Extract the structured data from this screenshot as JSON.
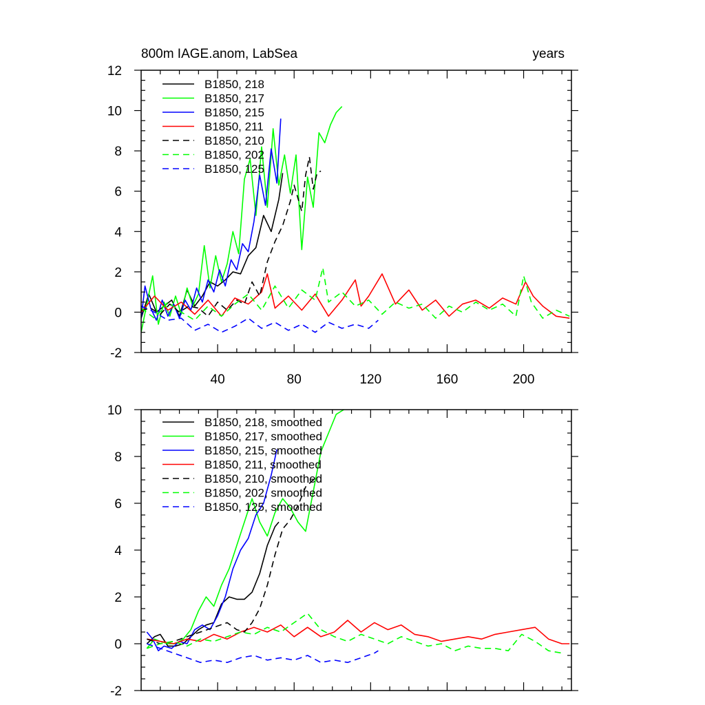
{
  "chart_data": [
    {
      "type": "line",
      "title": "800m IAGE.anom, LabSea",
      "title_right": "years",
      "xlabel": "",
      "ylabel": "",
      "xlim": [
        0,
        225
      ],
      "ylim": [
        -2,
        12
      ],
      "x_ticks": [
        40,
        80,
        120,
        160,
        200
      ],
      "x_tick_labels": [
        "40",
        "80",
        "120",
        "160",
        "200"
      ],
      "y_ticks": [
        -2,
        0,
        2,
        4,
        6,
        8,
        10,
        12
      ],
      "y_tick_labels": [
        "-2",
        "0",
        "2",
        "4",
        "6",
        "8",
        "10",
        "12"
      ],
      "legend_position": "top-left",
      "series": [
        {
          "name": "B1850, 218",
          "color": "#000000",
          "dash": "solid",
          "x": [
            0,
            4,
            8,
            12,
            16,
            20,
            24,
            28,
            32,
            36,
            40,
            44,
            48,
            52,
            56,
            60,
            64,
            68,
            72,
            74
          ],
          "values": [
            -0.3,
            0.9,
            0.0,
            0.3,
            0.6,
            -0.2,
            1.1,
            0.3,
            0.8,
            1.5,
            1.3,
            1.6,
            2.0,
            1.9,
            2.8,
            3.2,
            4.8,
            4.0,
            5.6,
            6.9
          ]
        },
        {
          "name": "B1850, 217",
          "color": "#00ff00",
          "dash": "solid",
          "x": [
            0,
            3,
            6,
            9,
            12,
            15,
            18,
            21,
            24,
            27,
            30,
            33,
            36,
            39,
            42,
            45,
            48,
            51,
            54,
            57,
            60,
            63,
            66,
            69,
            72,
            75,
            78,
            81,
            84,
            87,
            90,
            93,
            96,
            99,
            102,
            105
          ],
          "values": [
            -1.0,
            0.4,
            1.8,
            -0.6,
            0.5,
            -0.2,
            0.8,
            -0.1,
            1.2,
            0.3,
            0.9,
            3.3,
            1.2,
            2.8,
            1.5,
            2.4,
            4.0,
            2.9,
            6.6,
            7.6,
            4.8,
            8.2,
            5.2,
            9.1,
            6.3,
            7.8,
            5.9,
            7.8,
            3.1,
            6.7,
            5.2,
            8.9,
            8.4,
            9.3,
            9.9,
            10.2
          ]
        },
        {
          "name": "B1850, 215",
          "color": "#0000ff",
          "dash": "solid",
          "x": [
            0,
            2,
            5,
            8,
            11,
            14,
            17,
            20,
            23,
            26,
            29,
            32,
            35,
            38,
            41,
            44,
            47,
            50,
            53,
            56,
            59,
            62,
            65,
            68,
            71,
            73
          ],
          "values": [
            -0.3,
            1.3,
            0.2,
            -0.4,
            0.6,
            -0.2,
            0.4,
            -0.3,
            0.6,
            0.1,
            1.2,
            0.5,
            1.6,
            1.0,
            2.1,
            1.3,
            2.6,
            2.1,
            3.4,
            3.0,
            4.5,
            6.8,
            5.3,
            8.1,
            6.4,
            9.6
          ]
        },
        {
          "name": "B1850, 211",
          "color": "#ff0000",
          "dash": "solid",
          "x": [
            0,
            7,
            14,
            21,
            28,
            35,
            42,
            49,
            56,
            63,
            66,
            70,
            77,
            84,
            91,
            98,
            105,
            112,
            115,
            119,
            126,
            133,
            140,
            147,
            154,
            161,
            168,
            175,
            182,
            189,
            196,
            201,
            205,
            210,
            217,
            224
          ],
          "values": [
            0.0,
            0.8,
            0.1,
            0.5,
            -0.1,
            0.6,
            -0.2,
            0.7,
            0.4,
            1.0,
            1.9,
            0.2,
            0.8,
            0.1,
            0.9,
            -0.2,
            0.6,
            1.6,
            0.3,
            0.8,
            1.9,
            0.4,
            1.1,
            0.1,
            0.6,
            -0.2,
            0.4,
            0.6,
            0.2,
            0.7,
            0.4,
            1.5,
            0.8,
            0.3,
            -0.2,
            -0.3
          ]
        },
        {
          "name": "B1850, 210",
          "color": "#000000",
          "dash": "dashed",
          "x": [
            0,
            5,
            10,
            15,
            20,
            25,
            30,
            35,
            40,
            45,
            50,
            54,
            58,
            62,
            66,
            70,
            74,
            78,
            80,
            84,
            86,
            88,
            90,
            92,
            94
          ],
          "values": [
            0.1,
            0.2,
            -0.1,
            0.4,
            0.0,
            0.3,
            0.2,
            -0.2,
            0.5,
            0.1,
            0.6,
            0.4,
            1.5,
            0.8,
            2.5,
            3.5,
            4.3,
            5.5,
            6.3,
            5.0,
            6.8,
            7.7,
            6.1,
            6.9,
            7.0
          ]
        },
        {
          "name": "B1850, 202",
          "color": "#00ff00",
          "dash": "dashed",
          "x": [
            0,
            7,
            14,
            21,
            28,
            35,
            42,
            49,
            56,
            63,
            70,
            77,
            84,
            91,
            95,
            98,
            105,
            112,
            119,
            126,
            133,
            140,
            147,
            154,
            161,
            168,
            175,
            182,
            189,
            196,
            200,
            204,
            210,
            217,
            224
          ],
          "values": [
            0.2,
            -0.3,
            0.5,
            0.0,
            -0.4,
            0.3,
            -0.2,
            0.4,
            0.9,
            0.1,
            1.3,
            0.2,
            1.1,
            0.6,
            2.2,
            0.5,
            1.0,
            0.3,
            0.6,
            -0.1,
            0.5,
            0.2,
            0.4,
            -0.3,
            0.3,
            0.0,
            0.5,
            0.1,
            0.4,
            -0.2,
            1.8,
            0.5,
            -0.3,
            0.1,
            -0.2
          ]
        },
        {
          "name": "B1850, 125",
          "color": "#0000ff",
          "dash": "dashed",
          "x": [
            0,
            7,
            14,
            21,
            28,
            35,
            42,
            49,
            56,
            63,
            70,
            77,
            84,
            91,
            98,
            105,
            112,
            119,
            124
          ],
          "values": [
            0.3,
            0.0,
            -0.4,
            -0.3,
            -0.9,
            -0.6,
            -1.0,
            -0.7,
            -0.3,
            -0.8,
            -0.5,
            -0.9,
            -0.6,
            -1.0,
            -0.5,
            -0.8,
            -0.6,
            -0.8,
            -0.4
          ]
        }
      ]
    },
    {
      "type": "line",
      "title": "",
      "xlabel": "",
      "ylabel": "",
      "xlim": [
        0,
        225
      ],
      "ylim": [
        -2,
        10
      ],
      "x_ticks": [
        40,
        80,
        120,
        160,
        200
      ],
      "x_tick_labels": [],
      "y_ticks": [
        -2,
        0,
        2,
        4,
        6,
        8,
        10
      ],
      "y_tick_labels": [
        "-2",
        "0",
        "2",
        "4",
        "6",
        "8",
        "10"
      ],
      "legend_position": "top-left",
      "series": [
        {
          "name": "B1850, 218, smoothed",
          "color": "#000000",
          "dash": "solid",
          "x": [
            3,
            7,
            10,
            14,
            18,
            22,
            26,
            30,
            34,
            38,
            42,
            46,
            50,
            54,
            58,
            62,
            66,
            70,
            72
          ],
          "values": [
            0.0,
            0.3,
            0.4,
            -0.1,
            -0.1,
            0.0,
            0.3,
            0.6,
            0.8,
            0.9,
            1.7,
            2.0,
            1.9,
            1.9,
            2.2,
            3.0,
            4.2,
            5.0,
            5.2
          ]
        },
        {
          "name": "B1850, 217, smoothed",
          "color": "#00ff00",
          "dash": "solid",
          "x": [
            3,
            7,
            10,
            14,
            18,
            22,
            26,
            30,
            34,
            38,
            42,
            46,
            50,
            54,
            58,
            62,
            66,
            70,
            74,
            78,
            82,
            86,
            90,
            94,
            98,
            102,
            106
          ],
          "values": [
            -0.2,
            0.2,
            0.1,
            0.0,
            0.0,
            0.2,
            0.6,
            1.4,
            2.0,
            1.6,
            2.5,
            3.2,
            4.2,
            5.2,
            6.2,
            5.2,
            4.6,
            5.6,
            6.2,
            5.8,
            5.2,
            4.8,
            6.5,
            8.2,
            9.0,
            9.8,
            10.0
          ]
        },
        {
          "name": "B1850, 215, smoothed",
          "color": "#0000ff",
          "dash": "solid",
          "x": [
            3,
            6,
            9,
            12,
            16,
            20,
            24,
            28,
            32,
            36,
            40,
            44,
            48,
            52,
            56,
            60,
            64,
            68,
            71
          ],
          "values": [
            0.5,
            0.2,
            -0.3,
            -0.1,
            -0.2,
            0.1,
            0.0,
            0.6,
            0.8,
            0.6,
            1.2,
            2.0,
            3.2,
            4.0,
            4.5,
            5.5,
            6.0,
            7.2,
            8.3
          ]
        },
        {
          "name": "B1850, 211, smoothed",
          "color": "#ff0000",
          "dash": "solid",
          "x": [
            3,
            10,
            17,
            24,
            31,
            38,
            45,
            52,
            59,
            66,
            73,
            80,
            87,
            94,
            101,
            108,
            115,
            122,
            129,
            136,
            143,
            150,
            157,
            164,
            171,
            178,
            185,
            192,
            199,
            206,
            213,
            220,
            224
          ],
          "values": [
            0.2,
            0.1,
            0.0,
            0.2,
            0.1,
            0.4,
            0.2,
            0.5,
            0.7,
            0.5,
            0.8,
            0.3,
            0.7,
            0.3,
            0.5,
            1.0,
            0.5,
            0.9,
            0.6,
            0.8,
            0.4,
            0.3,
            0.1,
            0.2,
            0.3,
            0.2,
            0.4,
            0.5,
            0.6,
            0.7,
            0.2,
            0.0,
            0.0
          ]
        },
        {
          "name": "B1850, 210, smoothed",
          "color": "#000000",
          "dash": "dashed",
          "x": [
            3,
            10,
            17,
            24,
            31,
            38,
            45,
            50,
            54,
            58,
            62,
            66,
            70,
            74,
            78,
            82,
            86,
            90,
            92
          ],
          "values": [
            0.2,
            0.0,
            0.1,
            0.3,
            0.5,
            0.7,
            0.9,
            0.6,
            0.5,
            0.9,
            1.5,
            2.5,
            3.8,
            4.9,
            5.3,
            5.9,
            6.7,
            7.0,
            6.9
          ]
        },
        {
          "name": "B1850, 202, smoothed",
          "color": "#00ff00",
          "dash": "dashed",
          "x": [
            3,
            10,
            17,
            24,
            31,
            38,
            45,
            52,
            59,
            66,
            73,
            80,
            87,
            94,
            101,
            108,
            115,
            122,
            129,
            136,
            143,
            150,
            157,
            164,
            171,
            178,
            185,
            192,
            199,
            206,
            213,
            220
          ],
          "values": [
            -0.2,
            0.0,
            0.1,
            -0.1,
            0.2,
            0.1,
            0.3,
            0.5,
            0.4,
            0.7,
            0.5,
            0.9,
            1.3,
            0.6,
            0.3,
            0.1,
            0.4,
            0.2,
            0.0,
            0.3,
            0.1,
            -0.1,
            0.0,
            -0.3,
            -0.1,
            -0.2,
            -0.2,
            -0.3,
            0.4,
            0.1,
            -0.3,
            -0.4
          ]
        },
        {
          "name": "B1850, 125, smoothed",
          "color": "#0000ff",
          "dash": "dashed",
          "x": [
            3,
            10,
            17,
            24,
            31,
            38,
            45,
            52,
            59,
            66,
            73,
            80,
            87,
            94,
            101,
            108,
            115,
            122,
            124
          ],
          "values": [
            0.0,
            -0.2,
            -0.4,
            -0.6,
            -0.8,
            -0.7,
            -0.8,
            -0.6,
            -0.5,
            -0.7,
            -0.6,
            -0.7,
            -0.5,
            -0.8,
            -0.7,
            -0.8,
            -0.6,
            -0.4,
            -0.3
          ]
        }
      ]
    }
  ]
}
